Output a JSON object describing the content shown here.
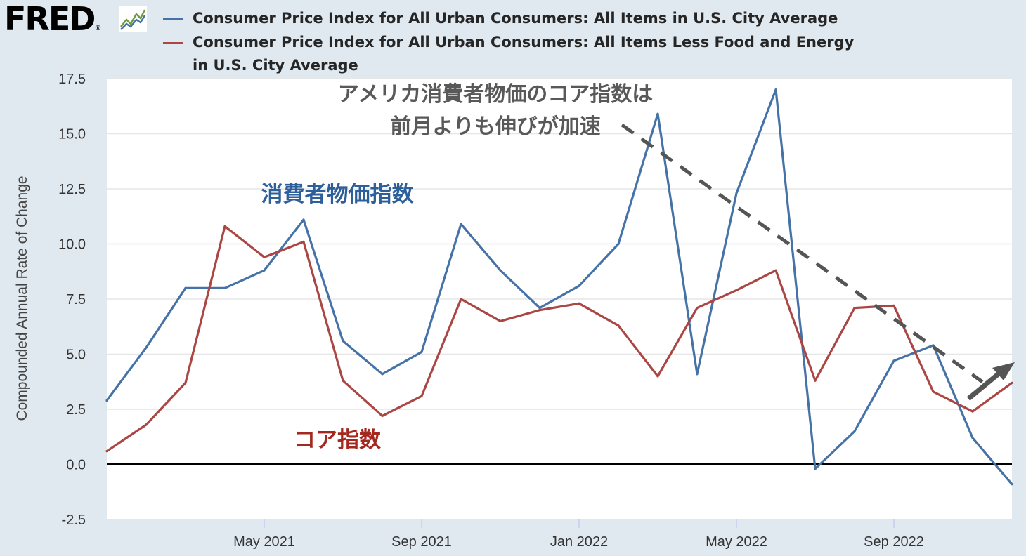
{
  "logo": {
    "text": "FRED",
    "registered": "®",
    "icon": "line-chart-icon"
  },
  "legend": [
    {
      "label": "Consumer Price Index for All Urban Consumers: All Items in U.S. City Average",
      "color": "#4572a7"
    },
    {
      "label": "Consumer Price Index for All Urban Consumers: All Items Less Food and Energy",
      "label_line2": "in U.S. City Average",
      "color": "#aa4643"
    }
  ],
  "annotations": {
    "headline_line1": "アメリカ消費者物価のコア指数は",
    "headline_line2": "前月よりも伸びが加速",
    "cpi_label": "消費者物価指数",
    "core_label": "コア指数"
  },
  "chart_data": {
    "type": "line",
    "ylabel": "Compounded Annual Rate of Change",
    "ylim": [
      -2.5,
      17.5
    ],
    "yticks": [
      "17.5",
      "15.0",
      "12.5",
      "10.0",
      "7.5",
      "5.0",
      "2.5",
      "0.0",
      "-2.5"
    ],
    "ytick_values": [
      17.5,
      15.0,
      12.5,
      10.0,
      7.5,
      5.0,
      2.5,
      0.0,
      -2.5
    ],
    "xticks": [
      "May 2021",
      "Sep 2021",
      "Jan 2022",
      "May 2022",
      "Sep 2022"
    ],
    "xtick_dates": [
      "2021-05",
      "2021-09",
      "2022-01",
      "2022-05",
      "2022-09"
    ],
    "x": [
      "2021-01",
      "2021-02",
      "2021-03",
      "2021-04",
      "2021-05",
      "2021-06",
      "2021-07",
      "2021-08",
      "2021-09",
      "2021-10",
      "2021-11",
      "2021-12",
      "2022-01",
      "2022-02",
      "2022-03",
      "2022-04",
      "2022-05",
      "2022-06",
      "2022-07",
      "2022-08",
      "2022-09",
      "2022-10",
      "2022-11",
      "2022-12"
    ],
    "grid": true,
    "series": [
      {
        "name": "Consumer Price Index for All Urban Consumers: All Items in U.S. City Average",
        "color": "#4572a7",
        "values": [
          2.9,
          5.3,
          8.0,
          8.0,
          8.8,
          11.1,
          5.6,
          4.1,
          5.1,
          10.9,
          8.8,
          7.1,
          8.1,
          10.0,
          15.9,
          4.1,
          12.3,
          17.0,
          -0.2,
          1.5,
          4.7,
          5.4,
          1.2,
          -0.9
        ]
      },
      {
        "name": "Consumer Price Index for All Urban Consumers: All Items Less Food and Energy",
        "color": "#aa4643",
        "values": [
          0.6,
          1.8,
          3.7,
          10.8,
          9.4,
          10.1,
          3.8,
          2.2,
          3.1,
          7.5,
          6.5,
          7.0,
          7.3,
          6.3,
          4.0,
          7.1,
          7.9,
          8.8,
          3.8,
          7.1,
          7.2,
          3.3,
          2.4,
          3.7
        ]
      }
    ]
  }
}
